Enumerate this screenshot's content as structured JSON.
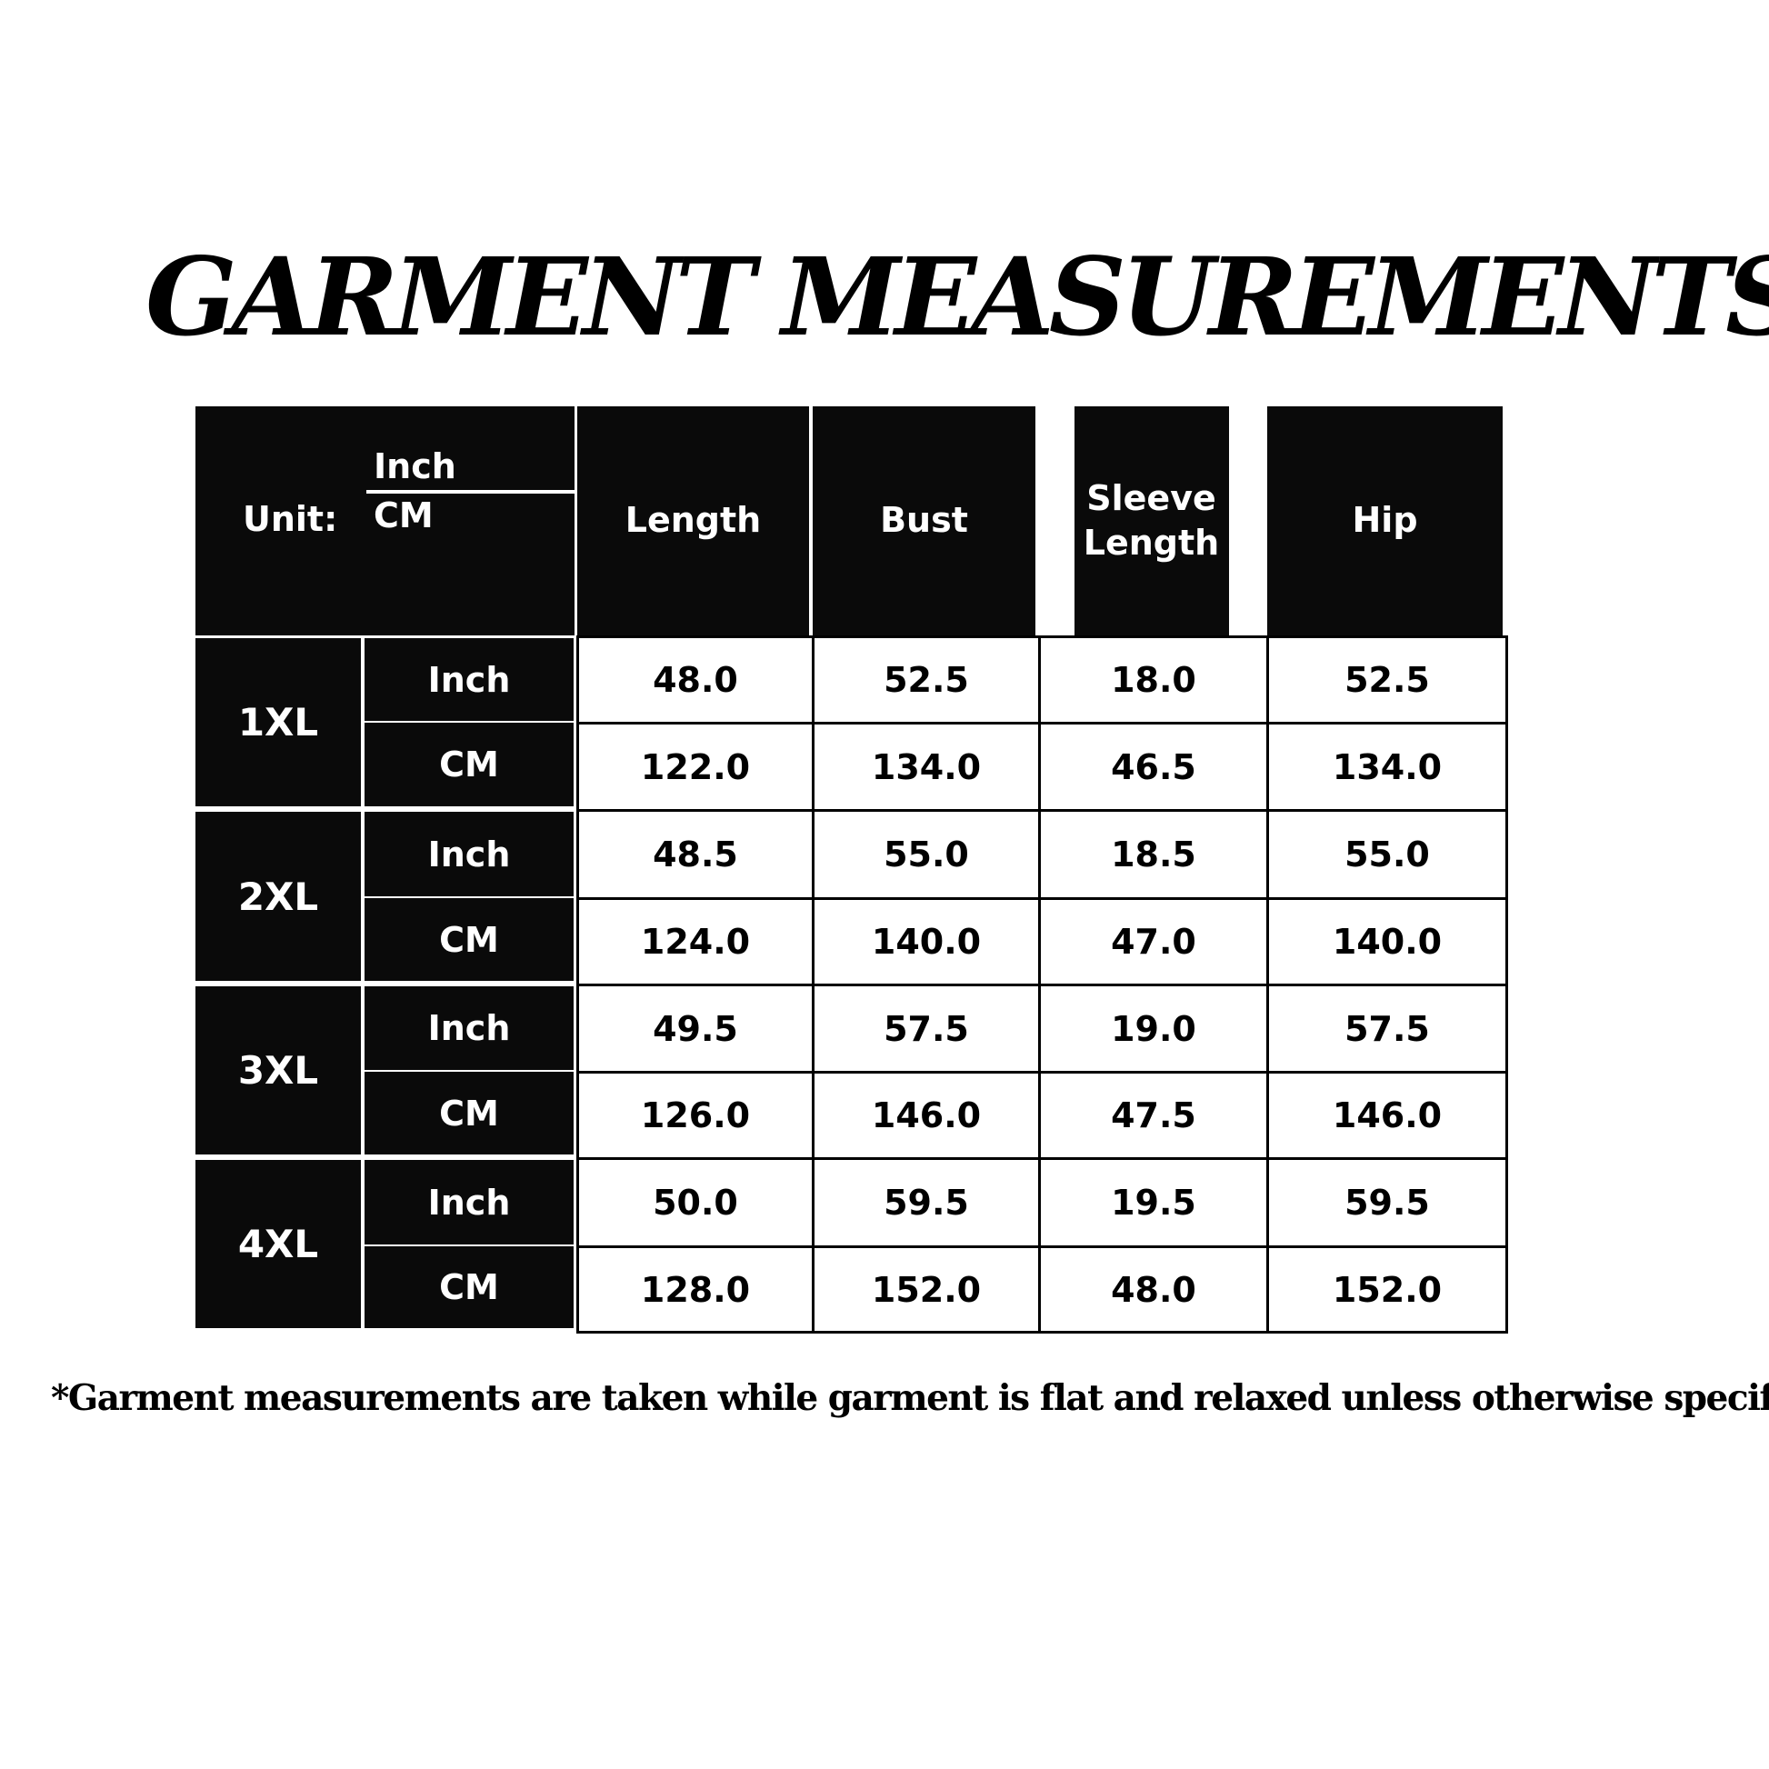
{
  "title": "GARMENT MEASUREMENTS",
  "table": {
    "unit_label": "Unit:",
    "unit_options": [
      "Inch",
      "CM"
    ],
    "columns": [
      "Length",
      "Bust",
      "Sleeve Length",
      "Hip"
    ],
    "rows": [
      {
        "size": "1XL",
        "inch_label": "Inch",
        "cm_label": "CM",
        "inch": [
          "48.0",
          "52.5",
          "18.0",
          "52.5"
        ],
        "cm": [
          "122.0",
          "134.0",
          "46.5",
          "134.0"
        ]
      },
      {
        "size": "2XL",
        "inch_label": "Inch",
        "cm_label": "CM",
        "inch": [
          "48.5",
          "55.0",
          "18.5",
          "55.0"
        ],
        "cm": [
          "124.0",
          "140.0",
          "47.0",
          "140.0"
        ]
      },
      {
        "size": "3XL",
        "inch_label": "Inch",
        "cm_label": "CM",
        "inch": [
          "49.5",
          "57.5",
          "19.0",
          "57.5"
        ],
        "cm": [
          "126.0",
          "146.0",
          "47.5",
          "146.0"
        ]
      },
      {
        "size": "4XL",
        "inch_label": "Inch",
        "cm_label": "CM",
        "inch": [
          "50.0",
          "59.5",
          "19.5",
          "59.5"
        ],
        "cm": [
          "128.0",
          "152.0",
          "48.0",
          "152.0"
        ]
      }
    ]
  },
  "footnote": "*Garment measurements are taken while garment is flat and relaxed unless otherwise specified"
}
